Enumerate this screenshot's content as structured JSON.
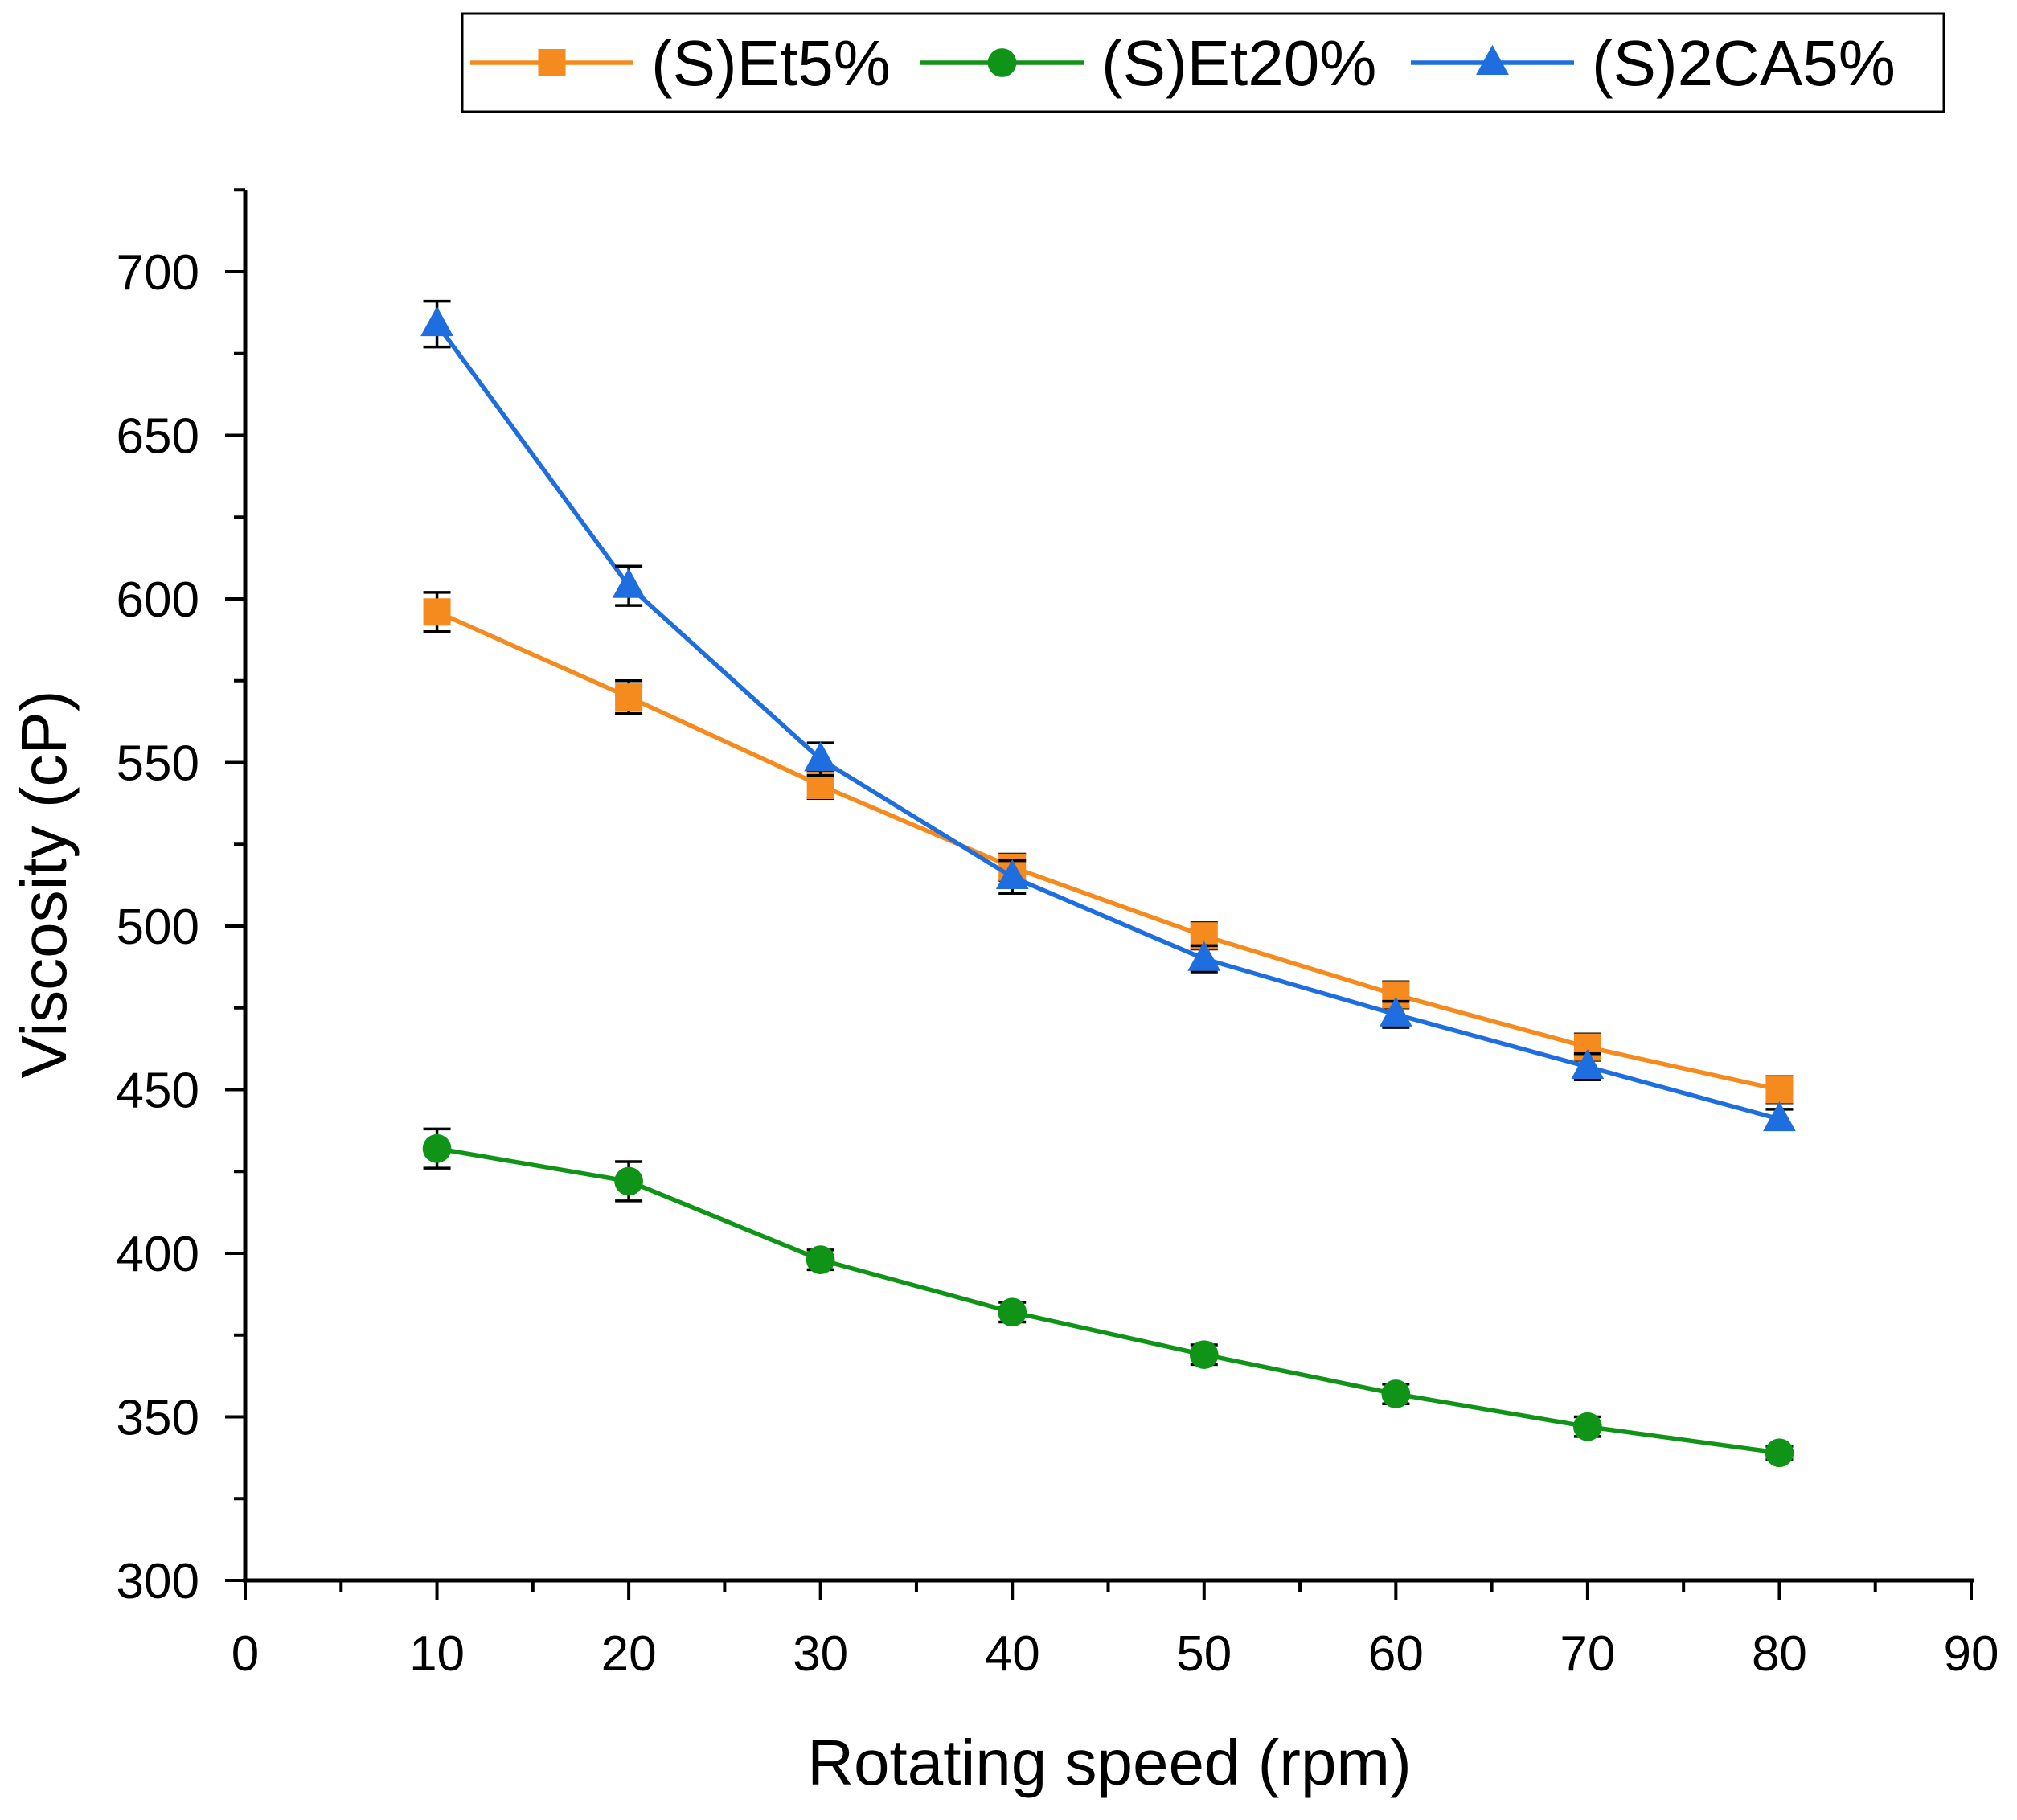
{
  "chart_data": {
    "type": "line",
    "title": "",
    "xlabel": "Rotating speed (rpm)",
    "ylabel": "Viscosity (cP)",
    "xlim": [
      0,
      90
    ],
    "ylim": [
      300,
      725
    ],
    "x_ticks": [
      0,
      10,
      20,
      30,
      40,
      50,
      60,
      70,
      80,
      90
    ],
    "x_tick_labels": [
      "0",
      "10",
      "20",
      "30",
      "40",
      "50",
      "60",
      "70",
      "80",
      "90"
    ],
    "y_ticks": [
      300,
      350,
      400,
      450,
      500,
      550,
      600,
      650,
      700
    ],
    "y_tick_labels": [
      "300",
      "350",
      "400",
      "450",
      "500",
      "550",
      "600",
      "650",
      "700"
    ],
    "x_minor_step": 5,
    "y_minor_step": 25,
    "grid": false,
    "legend_position": "top",
    "x": [
      10,
      20,
      30,
      40,
      50,
      60,
      70,
      80
    ],
    "series": [
      {
        "name": "(S)Et5%",
        "color": "#f58b1f",
        "marker": "square",
        "values": [
          596,
          570,
          543,
          518,
          497,
          479,
          463,
          450
        ],
        "errors": [
          6,
          5,
          4,
          4,
          4,
          4,
          4,
          4
        ]
      },
      {
        "name": "(S)Et20%",
        "color": "#0f9417",
        "marker": "circle",
        "values": [
          432,
          422,
          398,
          382,
          369,
          357,
          347,
          339
        ],
        "errors": [
          6,
          6,
          3,
          3,
          3,
          3,
          3,
          2
        ]
      },
      {
        "name": "(S)2CA5%",
        "color": "#1f6ee0",
        "marker": "triangle",
        "values": [
          684,
          604,
          551,
          515,
          490,
          473,
          457,
          441
        ],
        "errors": [
          7,
          6,
          5,
          5,
          4,
          4,
          4,
          3
        ]
      }
    ]
  }
}
